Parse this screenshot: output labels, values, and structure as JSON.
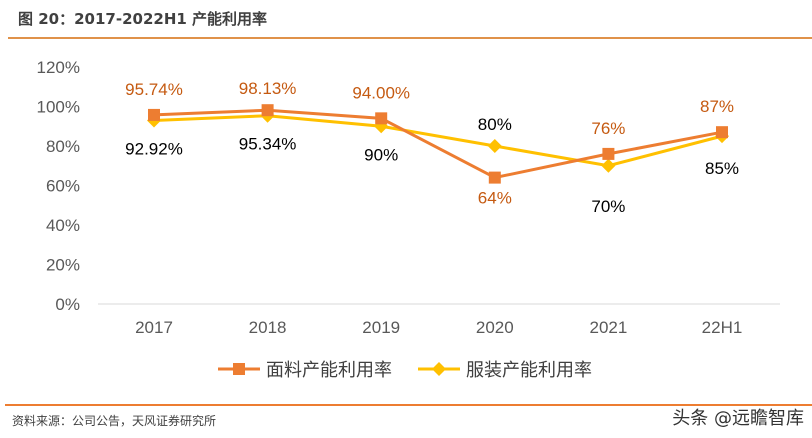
{
  "title": "图 20：2017-2022H1 产能利用率",
  "source": "资料来源：公司公告，天风证券研究所",
  "watermark": "头条 @远瞻智库",
  "chart_data": {
    "type": "line",
    "categories": [
      "2017",
      "2018",
      "2019",
      "2020",
      "2021",
      "22H1"
    ],
    "ylim": [
      0,
      120
    ],
    "yticks": [
      "0%",
      "20%",
      "40%",
      "60%",
      "80%",
      "100%",
      "120%"
    ],
    "grid": false,
    "legend": "bottom",
    "series": [
      {
        "name": "面料产能利用率",
        "values": [
          95.74,
          98.13,
          94.0,
          64,
          76,
          87
        ],
        "labels": [
          "95.74%",
          "98.13%",
          "94.00%",
          "64%",
          "76%",
          "87%"
        ],
        "color": "#ed7d31",
        "marker": "square"
      },
      {
        "name": "服装产能利用率",
        "values": [
          92.92,
          95.34,
          90,
          80,
          70,
          85
        ],
        "labels": [
          "92.92%",
          "95.34%",
          "90%",
          "80%",
          "70%",
          "85%"
        ],
        "color": "#ffc000",
        "marker": "diamond"
      }
    ]
  }
}
